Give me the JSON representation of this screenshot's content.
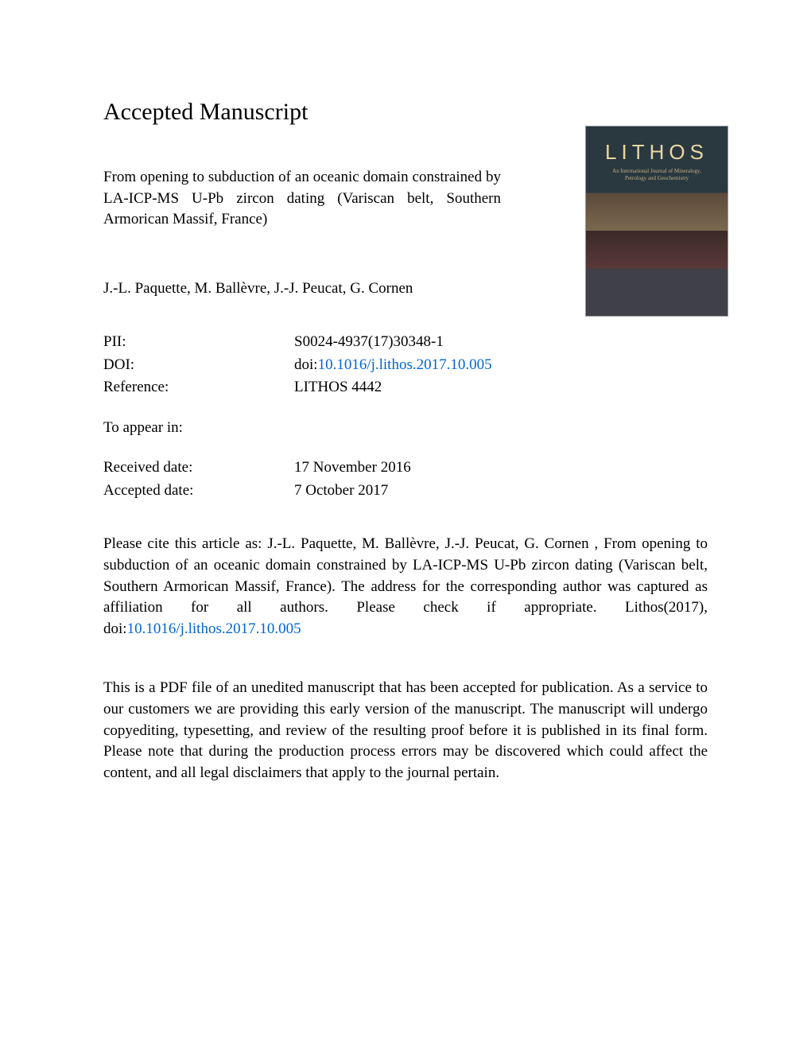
{
  "heading": "Accepted Manuscript",
  "article_title": "From opening to subduction of an oceanic domain constrained by LA-ICP-MS U-Pb zircon dating (Variscan belt, Southern Armorican Massif, France)",
  "authors": "J.-L. Paquette, M. Ballèvre, J.-J. Peucat, G. Cornen",
  "journal_cover": {
    "title": "LITHOS",
    "subtitle_line1": "An International Journal of Mineralogy,",
    "subtitle_line2": "Petrology and Geochemistry"
  },
  "metadata": {
    "pii_label": "PII:",
    "pii_value": "S0024-4937(17)30348-1",
    "doi_label": "DOI:",
    "doi_prefix": "doi:",
    "doi_link": "10.1016/j.lithos.2017.10.005",
    "reference_label": "Reference:",
    "reference_value": "LITHOS 4442",
    "appear_label": "To appear in:",
    "appear_value": "",
    "received_label": "Received date:",
    "received_value": "17 November 2016",
    "accepted_label": "Accepted date:",
    "accepted_value": "7 October 2017"
  },
  "citation": {
    "text_before_link": "Please cite this article as: J.-L. Paquette, M. Ballèvre, J.-J. Peucat, G. Cornen , From opening to subduction of an oceanic domain constrained by LA-ICP-MS U-Pb zircon dating (Variscan belt, Southern Armorican Massif, France). The address for the corresponding author was captured as affiliation for all authors. Please check if appropriate. Lithos(2017), doi:",
    "link_text": "10.1016/j.lithos.2017.10.005"
  },
  "disclaimer": "This is a PDF file of an unedited manuscript that has been accepted for publication. As a service to our customers we are providing this early version of the manuscript. The manuscript will undergo copyediting, typesetting, and review of the resulting proof before it is published in its final form. Please note that during the production process errors may be discovered which could affect the content, and all legal disclaimers that apply to the journal pertain.",
  "colors": {
    "text": "#000000",
    "link": "#0066cc",
    "background": "#ffffff"
  },
  "typography": {
    "body_fontsize": 19,
    "heading_fontsize": 30,
    "font_family": "Times New Roman"
  }
}
